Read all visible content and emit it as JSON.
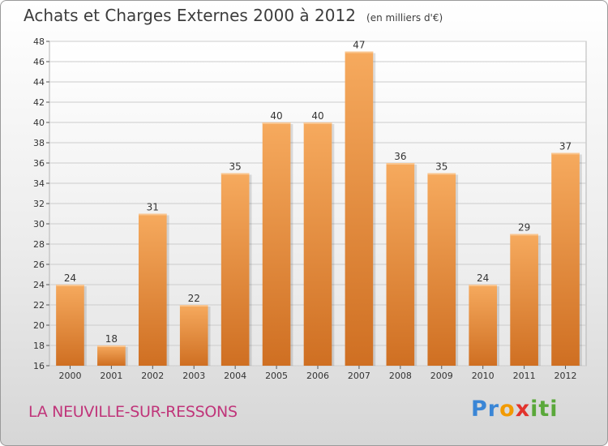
{
  "title": "Achats et Charges Externes 2000 à 2012",
  "unit_note": "(en milliers d'€)",
  "city": "LA NEUVILLE-SUR-RESSONS",
  "logo": {
    "letters": [
      "P",
      "r",
      "o",
      "x",
      "i",
      "t",
      "i"
    ],
    "colors": [
      "#3a86d6",
      "#3a86d6",
      "#f29a00",
      "#e2332d",
      "#5aa83a",
      "#5aa83a",
      "#5aa83a"
    ]
  },
  "colors": {
    "bar": "#e8893a",
    "bar_light": "#f6aa5e",
    "bar_dark": "#cf6f22",
    "grid": "#cccccc"
  },
  "chart_data": {
    "type": "bar",
    "title": "Achats et Charges Externes 2000 à 2012",
    "categories": [
      "2000",
      "2001",
      "2002",
      "2003",
      "2004",
      "2005",
      "2006",
      "2007",
      "2008",
      "2009",
      "2010",
      "2011",
      "2012"
    ],
    "values": [
      24,
      18,
      31,
      22,
      35,
      40,
      40,
      47,
      36,
      35,
      24,
      29,
      37
    ],
    "ylim": [
      16,
      48
    ],
    "yticks": [
      16,
      18,
      20,
      22,
      24,
      26,
      28,
      30,
      32,
      34,
      36,
      38,
      40,
      42,
      44,
      46,
      48
    ],
    "grid": true,
    "xlabel": "",
    "ylabel": ""
  }
}
